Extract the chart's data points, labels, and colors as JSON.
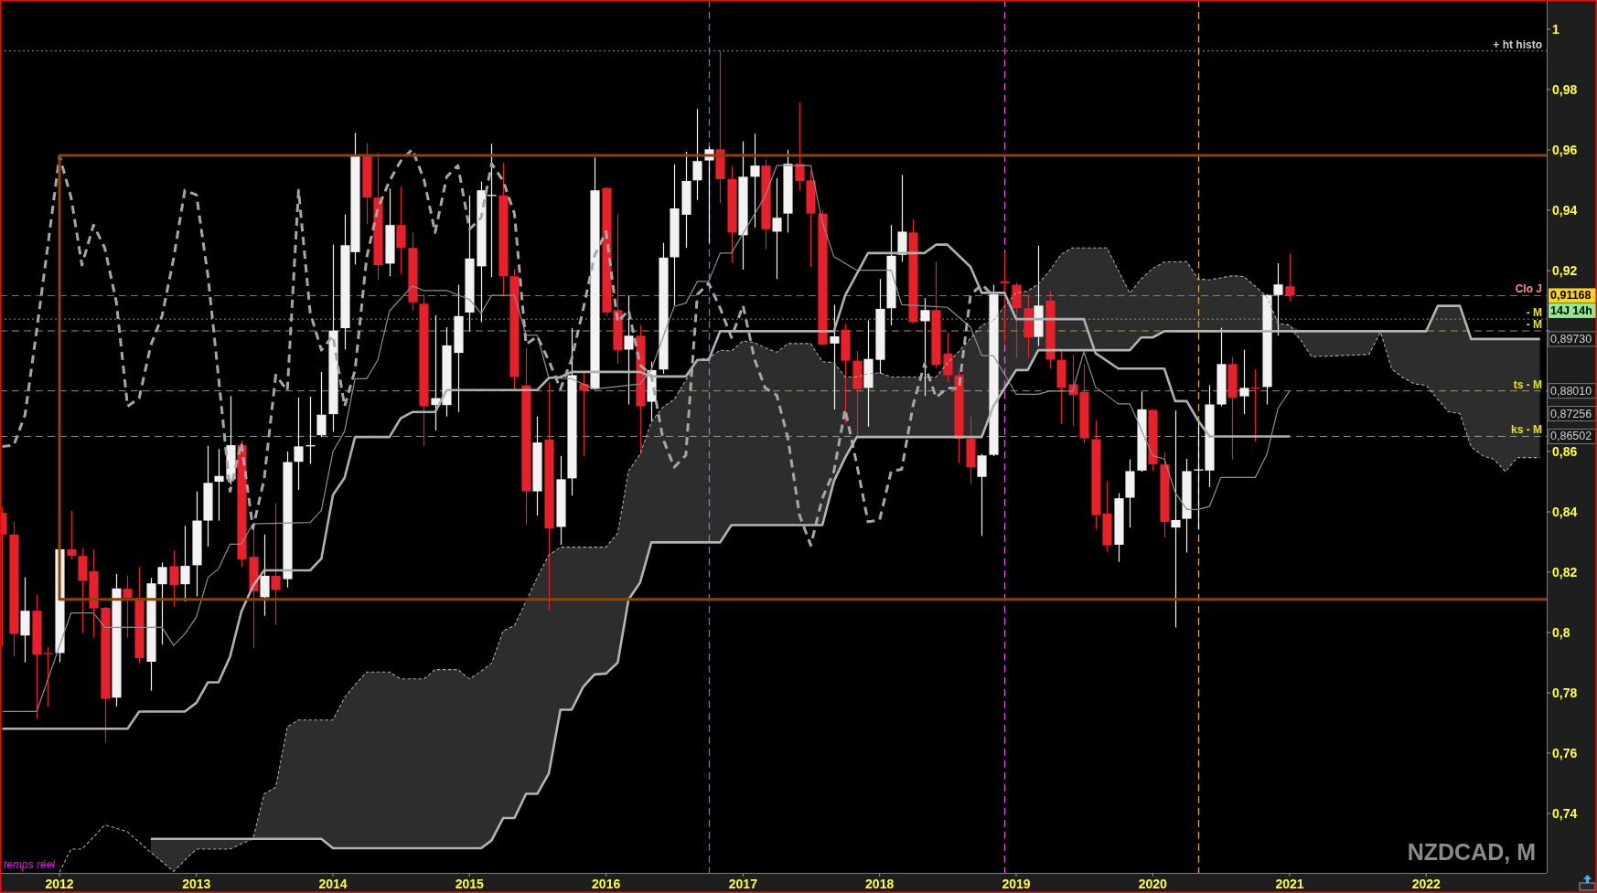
{
  "chart_data": {
    "type": "candlestick",
    "title": "NZDCAD, M",
    "x": [
      "2011-08",
      "2011-09",
      "2011-10",
      "2011-11",
      "2011-12",
      "2012-01",
      "2012-02",
      "2012-03",
      "2012-04",
      "2012-05",
      "2012-06",
      "2012-07",
      "2012-08",
      "2012-09",
      "2012-10",
      "2012-11",
      "2012-12",
      "2013-01",
      "2013-02",
      "2013-03",
      "2013-04",
      "2013-05",
      "2013-06",
      "2013-07",
      "2013-08",
      "2013-09",
      "2013-10",
      "2013-11",
      "2013-12",
      "2014-01",
      "2014-02",
      "2014-03",
      "2014-04",
      "2014-05",
      "2014-06",
      "2014-07",
      "2014-08",
      "2014-09",
      "2014-10",
      "2014-11",
      "2014-12",
      "2015-01",
      "2015-02",
      "2015-03",
      "2015-04",
      "2015-05",
      "2015-06",
      "2015-07",
      "2015-08",
      "2015-09",
      "2015-10",
      "2015-11",
      "2015-12",
      "2016-01",
      "2016-02",
      "2016-03",
      "2016-04",
      "2016-05",
      "2016-06",
      "2016-07",
      "2016-08",
      "2016-09",
      "2016-10",
      "2016-11",
      "2016-12",
      "2017-01",
      "2017-02",
      "2017-03",
      "2017-04",
      "2017-05",
      "2017-06",
      "2017-07",
      "2017-08",
      "2017-09",
      "2017-10",
      "2017-11",
      "2017-12",
      "2018-01",
      "2018-02",
      "2018-03",
      "2018-04",
      "2018-05",
      "2018-06",
      "2018-07",
      "2018-08",
      "2018-09",
      "2018-10",
      "2018-11",
      "2018-12",
      "2019-01",
      "2019-02",
      "2019-03",
      "2019-04",
      "2019-05",
      "2019-06",
      "2019-07",
      "2019-08",
      "2019-09",
      "2019-10",
      "2019-11",
      "2019-12",
      "2020-01",
      "2020-02",
      "2020-03",
      "2020-04",
      "2020-05",
      "2020-06",
      "2020-07",
      "2020-08",
      "2020-09",
      "2020-10",
      "2020-11",
      "2020-12",
      "2021-01"
    ],
    "ohlc": [
      [
        0.8397,
        0.8417,
        0.7955,
        0.8325
      ],
      [
        0.8325,
        0.8367,
        0.7921,
        0.7995
      ],
      [
        0.799,
        0.8183,
        0.7901,
        0.8072
      ],
      [
        0.8072,
        0.8126,
        0.7715,
        0.7926
      ],
      [
        0.7932,
        0.7952,
        0.7755,
        0.7928
      ],
      [
        0.7932,
        0.8277,
        0.7901,
        0.8276
      ],
      [
        0.8276,
        0.8403,
        0.8243,
        0.8254
      ],
      [
        0.8254,
        0.828,
        0.7998,
        0.8171
      ],
      [
        0.8203,
        0.8276,
        0.7983,
        0.808
      ],
      [
        0.8082,
        0.8085,
        0.7636,
        0.778
      ],
      [
        0.7784,
        0.8194,
        0.7755,
        0.8146
      ],
      [
        0.8145,
        0.8188,
        0.7983,
        0.8115
      ],
      [
        0.8115,
        0.8217,
        0.7898,
        0.7915
      ],
      [
        0.7903,
        0.8181,
        0.7807,
        0.8163
      ],
      [
        0.816,
        0.8232,
        0.796,
        0.8217
      ],
      [
        0.822,
        0.8272,
        0.8086,
        0.8157
      ],
      [
        0.816,
        0.8354,
        0.8103,
        0.8221
      ],
      [
        0.8223,
        0.8468,
        0.812,
        0.8371
      ],
      [
        0.8371,
        0.8619,
        0.8285,
        0.8496
      ],
      [
        0.85,
        0.8608,
        0.8371,
        0.8519
      ],
      [
        0.8508,
        0.8784,
        0.849,
        0.8621
      ],
      [
        0.8621,
        0.8636,
        0.8217,
        0.8242
      ],
      [
        0.8251,
        0.8348,
        0.7949,
        0.8137
      ],
      [
        0.8117,
        0.8325,
        0.8055,
        0.8188
      ],
      [
        0.8188,
        0.8428,
        0.8025,
        0.8141
      ],
      [
        0.8177,
        0.86,
        0.8149,
        0.8565
      ],
      [
        0.8566,
        0.8779,
        0.8473,
        0.8617
      ],
      [
        0.8617,
        0.8782,
        0.8559,
        0.8621
      ],
      [
        0.8654,
        0.8864,
        0.8648,
        0.8722
      ],
      [
        0.8724,
        0.9286,
        0.8665,
        0.9001
      ],
      [
        0.9009,
        0.9386,
        0.8938,
        0.9284
      ],
      [
        0.9261,
        0.9657,
        0.922,
        0.958
      ],
      [
        0.958,
        0.9622,
        0.9354,
        0.9442
      ],
      [
        0.9442,
        0.959,
        0.9169,
        0.9218
      ],
      [
        0.9223,
        0.9472,
        0.9181,
        0.9351
      ],
      [
        0.9351,
        0.9478,
        0.9189,
        0.9275
      ],
      [
        0.9275,
        0.9326,
        0.9066,
        0.9095
      ],
      [
        0.909,
        0.9121,
        0.8617,
        0.875
      ],
      [
        0.8754,
        0.9052,
        0.867,
        0.8777
      ],
      [
        0.8754,
        0.9012,
        0.8716,
        0.8952
      ],
      [
        0.8927,
        0.9153,
        0.8731,
        0.9049
      ],
      [
        0.9061,
        0.9449,
        0.8998,
        0.924
      ],
      [
        0.9214,
        0.9495,
        0.9029,
        0.9466
      ],
      [
        0.9447,
        0.962,
        0.9178,
        0.9451
      ],
      [
        0.9449,
        0.9557,
        0.9117,
        0.9181
      ],
      [
        0.9181,
        0.9204,
        0.8802,
        0.8847
      ],
      [
        0.8819,
        0.8944,
        0.8357,
        0.8468
      ],
      [
        0.8468,
        0.8716,
        0.8388,
        0.863
      ],
      [
        0.864,
        0.883,
        0.8072,
        0.8345
      ],
      [
        0.835,
        0.8585,
        0.8291,
        0.8508
      ],
      [
        0.8511,
        0.9009,
        0.8454,
        0.8853
      ],
      [
        0.8824,
        0.8864,
        0.8585,
        0.8802
      ],
      [
        0.8807,
        0.9575,
        0.8805,
        0.9466
      ],
      [
        0.9474,
        0.9477,
        0.9047,
        0.9061
      ],
      [
        0.9069,
        0.9385,
        0.889,
        0.8936
      ],
      [
        0.8938,
        0.9118,
        0.8756,
        0.8984
      ],
      [
        0.8984,
        0.902,
        0.8591,
        0.875
      ],
      [
        0.8765,
        0.8898,
        0.8699,
        0.887
      ],
      [
        0.8872,
        0.9292,
        0.8858,
        0.9243
      ],
      [
        0.9244,
        0.9552,
        0.9084,
        0.9406
      ],
      [
        0.9385,
        0.9594,
        0.9275,
        0.9497
      ],
      [
        0.9499,
        0.9736,
        0.9434,
        0.9563
      ],
      [
        0.9565,
        0.9611,
        0.9292,
        0.9602
      ],
      [
        0.9602,
        0.9928,
        0.9423,
        0.9503
      ],
      [
        0.9503,
        0.9545,
        0.9226,
        0.9326
      ],
      [
        0.9317,
        0.9628,
        0.9203,
        0.9511
      ],
      [
        0.9511,
        0.9654,
        0.9343,
        0.9548
      ],
      [
        0.9548,
        0.9568,
        0.9271,
        0.9337
      ],
      [
        0.9329,
        0.9506,
        0.9172,
        0.9375
      ],
      [
        0.9389,
        0.96,
        0.9326,
        0.9554
      ],
      [
        0.9554,
        0.9757,
        0.9465,
        0.9497
      ],
      [
        0.9499,
        0.9531,
        0.9212,
        0.9389
      ],
      [
        0.9389,
        0.94,
        0.8952,
        0.8955
      ],
      [
        0.8958,
        0.9087,
        0.8739,
        0.8982
      ],
      [
        0.9004,
        0.9024,
        0.8693,
        0.8901
      ],
      [
        0.8901,
        0.8933,
        0.8648,
        0.8807
      ],
      [
        0.8811,
        0.9035,
        0.8682,
        0.8907
      ],
      [
        0.8904,
        0.9172,
        0.8858,
        0.9073
      ],
      [
        0.9075,
        0.9351,
        0.9018,
        0.9249
      ],
      [
        0.9252,
        0.9517,
        0.9229,
        0.9329
      ],
      [
        0.9326,
        0.9371,
        0.9024,
        0.9029
      ],
      [
        0.9032,
        0.9109,
        0.8784,
        0.9069
      ],
      [
        0.9069,
        0.9229,
        0.8876,
        0.8887
      ],
      [
        0.8925,
        0.8995,
        0.883,
        0.8853
      ],
      [
        0.8853,
        0.8864,
        0.8562,
        0.8642
      ],
      [
        0.8642,
        0.8716,
        0.8493,
        0.8548
      ],
      [
        0.8516,
        0.8592,
        0.832,
        0.8587
      ],
      [
        0.8589,
        0.9153,
        0.8585,
        0.9121
      ],
      [
        0.9164,
        0.9258,
        0.896,
        0.9158
      ],
      [
        0.9153,
        0.9161,
        0.891,
        0.9075
      ],
      [
        0.9075,
        0.9118,
        0.891,
        0.8978
      ],
      [
        0.898,
        0.9282,
        0.895,
        0.9084
      ],
      [
        0.91,
        0.9132,
        0.8876,
        0.8905
      ],
      [
        0.8904,
        0.8937,
        0.8691,
        0.8811
      ],
      [
        0.8823,
        0.892,
        0.8685,
        0.8787
      ],
      [
        0.8797,
        0.889,
        0.8627,
        0.8644
      ],
      [
        0.8641,
        0.8703,
        0.8342,
        0.8389
      ],
      [
        0.8394,
        0.8502,
        0.8268,
        0.8289
      ],
      [
        0.8291,
        0.8462,
        0.8234,
        0.8445
      ],
      [
        0.8447,
        0.8574,
        0.8348,
        0.8535
      ],
      [
        0.8537,
        0.8799,
        0.8533,
        0.874
      ],
      [
        0.8738,
        0.8741,
        0.8537,
        0.8558
      ],
      [
        0.8557,
        0.8597,
        0.8315,
        0.8367
      ],
      [
        0.8348,
        0.8736,
        0.8017,
        0.8373
      ],
      [
        0.8377,
        0.8576,
        0.8265,
        0.8535
      ],
      [
        0.8537,
        0.8694,
        0.8342,
        0.8541
      ],
      [
        0.8537,
        0.882,
        0.8482,
        0.8756
      ],
      [
        0.8756,
        0.901,
        0.875,
        0.889
      ],
      [
        0.889,
        0.8914,
        0.8574,
        0.8779
      ],
      [
        0.8783,
        0.8937,
        0.8724,
        0.8811
      ],
      [
        0.8812,
        0.8873,
        0.8633,
        0.8809
      ],
      [
        0.8814,
        0.9121,
        0.8756,
        0.9119
      ],
      [
        0.9119,
        0.9224,
        0.8984,
        0.9154
      ],
      [
        0.9148,
        0.9256,
        0.9099,
        0.91168
      ]
    ],
    "colors": [
      "#e8202a",
      "#e8202a",
      "#f2f2f2",
      "#e8202a",
      "#e8202a",
      "#f2f2f2",
      "#e8202a",
      "#e8202a",
      "#e8202a",
      "#e8202a",
      "#f2f2f2",
      "#e8202a",
      "#e8202a",
      "#f2f2f2",
      "#f2f2f2",
      "#e8202a",
      "#f2f2f2",
      "#f2f2f2",
      "#f2f2f2",
      "#f2f2f2",
      "#f2f2f2",
      "#e8202a",
      "#e8202a",
      "#f2f2f2",
      "#e8202a",
      "#f2f2f2",
      "#f2f2f2",
      "#f2f2f2",
      "#f2f2f2",
      "#f2f2f2",
      "#f2f2f2",
      "#f2f2f2",
      "#e8202a",
      "#e8202a",
      "#f2f2f2",
      "#e8202a",
      "#e8202a",
      "#e8202a",
      "#f2f2f2",
      "#f2f2f2",
      "#f2f2f2",
      "#f2f2f2",
      "#f2f2f2",
      "#f2f2f2",
      "#e8202a",
      "#e8202a",
      "#e8202a",
      "#f2f2f2",
      "#e8202a",
      "#f2f2f2",
      "#f2f2f2",
      "#e8202a",
      "#f2f2f2",
      "#e8202a",
      "#e8202a",
      "#f2f2f2",
      "#e8202a",
      "#f2f2f2",
      "#f2f2f2",
      "#f2f2f2",
      "#f2f2f2",
      "#f2f2f2",
      "#f2f2f2",
      "#e8202a",
      "#e8202a",
      "#f2f2f2",
      "#f2f2f2",
      "#e8202a",
      "#f2f2f2",
      "#f2f2f2",
      "#e8202a",
      "#e8202a",
      "#e8202a",
      "#f2f2f2",
      "#e8202a",
      "#e8202a",
      "#f2f2f2",
      "#f2f2f2",
      "#f2f2f2",
      "#f2f2f2",
      "#e8202a",
      "#f2f2f2",
      "#e8202a",
      "#e8202a",
      "#e8202a",
      "#e8202a",
      "#f2f2f2",
      "#f2f2f2",
      "#e8202a",
      "#e8202a",
      "#e8202a",
      "#f2f2f2",
      "#e8202a",
      "#e8202a",
      "#e8202a",
      "#e8202a",
      "#e8202a",
      "#e8202a",
      "#f2f2f2",
      "#f2f2f2",
      "#f2f2f2",
      "#e8202a",
      "#e8202a",
      "#f2f2f2",
      "#f2f2f2",
      "#f2f2f2",
      "#f2f2f2",
      "#f2f2f2",
      "#e8202a",
      "#f2f2f2",
      "#e8202a",
      "#f2f2f2",
      "#f2f2f2",
      "#e8202a"
    ],
    "series": [
      {
        "type": "line",
        "color": "#8e8e8e",
        "x": [
          "2011-08",
          "2011-11",
          "2012-02",
          "2012-04",
          "2012-05",
          "2012-10",
          "2012-11",
          "2012-12",
          "2013-01",
          "2013-02",
          "2013-03",
          "2013-04",
          "2013-05",
          "2013-06",
          "2013-11",
          "2013-12",
          "2014-01",
          "2014-02",
          "2014-03",
          "2014-04",
          "2014-05",
          "2014-06",
          "2014-08",
          "2014-09",
          "2014-11",
          "2015-01",
          "2015-02",
          "2015-03",
          "2015-05",
          "2015-06",
          "2015-07",
          "2015-08",
          "2015-10",
          "2015-12",
          "2016-04",
          "2016-05",
          "2016-07",
          "2016-08",
          "2016-09",
          "2016-10",
          "2016-11",
          "2016-12",
          "2017-03",
          "2017-04",
          "2017-07",
          "2017-08",
          "2017-09",
          "2017-11",
          "2018-02",
          "2018-03",
          "2018-07",
          "2018-09",
          "2018-10",
          "2018-11",
          "2019-01",
          "2019-03",
          "2019-04",
          "2019-06",
          "2019-07",
          "2019-08",
          "2019-10",
          "2019-11",
          "2020-01",
          "2020-02",
          "2020-03",
          "2020-04",
          "2020-05",
          "2020-06",
          "2020-07",
          "2020-10",
          "2020-11",
          "2020-12",
          "2021-01"
        ],
        "values": [
          0.7738,
          0.7738,
          0.8065,
          0.8065,
          0.8017,
          0.8017,
          0.7957,
          0.7995,
          0.8052,
          0.8183,
          0.8211,
          0.8293,
          0.8293,
          0.836,
          0.8365,
          0.8405,
          0.86,
          0.8667,
          0.8841,
          0.8841,
          0.8904,
          0.9066,
          0.9149,
          0.9134,
          0.9134,
          0.9104,
          0.9058,
          0.9118,
          0.9118,
          0.8986,
          0.8986,
          0.8844,
          0.8841,
          0.8807,
          0.8824,
          0.8872,
          0.9081,
          0.9092,
          0.9164,
          0.9164,
          0.9258,
          0.9258,
          0.9446,
          0.9548,
          0.9548,
          0.936,
          0.9246,
          0.9201,
          0.9201,
          0.9087,
          0.9078,
          0.9012,
          0.8918,
          0.8918,
          0.879,
          0.879,
          0.8801,
          0.88,
          0.8931,
          0.8814,
          0.8758,
          0.8758,
          0.8586,
          0.8575,
          0.8465,
          0.8408,
          0.8408,
          0.8418,
          0.8514,
          0.8514,
          0.859,
          0.8744,
          0.8801
        ]
      },
      {
        "type": "line",
        "color": "#b0b0b0",
        "x": [
          "2011-08",
          "2012-07",
          "2012-08",
          "2012-12",
          "2013-01",
          "2013-02",
          "2013-03",
          "2013-04",
          "2013-05",
          "2013-06",
          "2013-07",
          "2013-11",
          "2013-12",
          "2014-01",
          "2014-02",
          "2014-03",
          "2014-06",
          "2014-07",
          "2014-08",
          "2014-10",
          "2014-11",
          "2015-07",
          "2015-08",
          "2015-09",
          "2015-10",
          "2016-04",
          "2016-05",
          "2016-08",
          "2016-09",
          "2016-10",
          "2016-11",
          "2017-09",
          "2017-10",
          "2017-12",
          "2018-05",
          "2018-06",
          "2018-07",
          "2018-09",
          "2018-10",
          "2018-12",
          "2019-01",
          "2019-07",
          "2019-08",
          "2019-10",
          "2020-02",
          "2020-03",
          "2020-04",
          "2020-05",
          "2020-06",
          "2021-01"
        ],
        "values": [
          0.7681,
          0.7681,
          0.7738,
          0.7738,
          0.7767,
          0.7835,
          0.7835,
          0.792,
          0.8069,
          0.8154,
          0.8206,
          0.8206,
          0.8245,
          0.8456,
          0.8513,
          0.8648,
          0.8648,
          0.871,
          0.8731,
          0.8731,
          0.8804,
          0.8804,
          0.8844,
          0.8847,
          0.8864,
          0.8864,
          0.8849,
          0.8849,
          0.8904,
          0.8904,
          0.8999,
          0.8999,
          0.9118,
          0.9258,
          0.9258,
          0.9286,
          0.9286,
          0.9212,
          0.9126,
          0.9126,
          0.9039,
          0.9039,
          0.8926,
          0.8875,
          0.8875,
          0.8767,
          0.8767,
          0.8703,
          0.865,
          0.865
        ]
      },
      {
        "type": "line",
        "color": "#a6a6a6",
        "line_style": "dashed",
        "x": [
          "2011-08",
          "2011-09",
          "2011-10",
          "2011-11",
          "2011-12",
          "2012-01",
          "2012-02",
          "2012-03",
          "2012-04",
          "2012-05",
          "2012-06",
          "2012-07",
          "2012-08",
          "2012-09",
          "2012-10",
          "2012-11",
          "2012-12",
          "2013-01",
          "2013-02",
          "2013-03",
          "2013-04",
          "2013-05",
          "2013-06",
          "2013-07",
          "2013-08",
          "2013-09",
          "2013-10",
          "2013-11",
          "2013-12",
          "2014-01",
          "2014-02",
          "2014-03",
          "2014-04",
          "2014-05",
          "2014-06",
          "2014-07",
          "2014-08",
          "2014-09",
          "2014-10",
          "2014-11",
          "2014-12",
          "2015-01",
          "2015-02",
          "2015-03",
          "2015-04",
          "2015-05",
          "2015-06",
          "2015-07",
          "2015-08",
          "2015-09",
          "2015-10",
          "2015-11",
          "2015-12",
          "2016-01",
          "2016-02",
          "2016-03",
          "2016-04",
          "2016-05",
          "2016-06",
          "2016-07",
          "2016-08",
          "2016-09",
          "2016-10",
          "2016-11",
          "2016-12",
          "2017-01",
          "2017-02",
          "2017-03",
          "2017-04",
          "2017-05",
          "2017-06",
          "2017-07",
          "2017-08",
          "2017-09",
          "2017-10",
          "2017-11",
          "2017-12",
          "2018-01",
          "2018-02",
          "2018-03",
          "2018-04",
          "2018-05",
          "2018-06",
          "2018-07",
          "2018-08",
          "2018-09",
          "2018-10",
          "2018-11"
        ],
        "values": [
          0.8617,
          0.8621,
          0.8722,
          0.9001,
          0.9284,
          0.958,
          0.9442,
          0.9218,
          0.9351,
          0.9275,
          0.9095,
          0.875,
          0.8777,
          0.8952,
          0.9049,
          0.924,
          0.9466,
          0.9451,
          0.9181,
          0.8847,
          0.8468,
          0.863,
          0.8345,
          0.8508,
          0.8853,
          0.8802,
          0.9466,
          0.9061,
          0.8936,
          0.8984,
          0.875,
          0.887,
          0.9243,
          0.9406,
          0.9497,
          0.9563,
          0.9602,
          0.9503,
          0.9326,
          0.9511,
          0.9548,
          0.9337,
          0.9375,
          0.9554,
          0.9497,
          0.9389,
          0.8955,
          0.8982,
          0.8901,
          0.8807,
          0.8907,
          0.9073,
          0.9249,
          0.9329,
          0.9029,
          0.9069,
          0.8887,
          0.8853,
          0.8642,
          0.8548,
          0.8587,
          0.9121,
          0.9158,
          0.9075,
          0.8978,
          0.9084,
          0.8905,
          0.8811,
          0.8787,
          0.8644,
          0.8389,
          0.8289,
          0.8445,
          0.8535,
          0.874,
          0.8558,
          0.8367,
          0.8373,
          0.8535,
          0.8541,
          0.8756,
          0.889,
          0.8779,
          0.8811,
          0.8809,
          0.9119,
          0.9154,
          0.91168
        ]
      },
      {
        "type": "line",
        "color": "#a8a8a8",
        "line_style": "dashed",
        "x": [
          "2012-01",
          "2012-02",
          "2012-03",
          "2012-04",
          "2012-05",
          "2012-06",
          "2012-07",
          "2012-08",
          "2012-09",
          "2012-10",
          "2012-11",
          "2012-12",
          "2013-01",
          "2013-02",
          "2013-03",
          "2013-04",
          "2013-05",
          "2013-06",
          "2013-07",
          "2013-08",
          "2013-09",
          "2013-10",
          "2013-11",
          "2013-12",
          "2014-01",
          "2014-02",
          "2014-03",
          "2014-04",
          "2014-05",
          "2014-06",
          "2014-07",
          "2014-08",
          "2014-09",
          "2014-10",
          "2014-11",
          "2014-12",
          "2015-01",
          "2015-02",
          "2015-03",
          "2015-04",
          "2015-05",
          "2015-06",
          "2015-07",
          "2015-08",
          "2015-09",
          "2015-10",
          "2015-11",
          "2015-12",
          "2016-01",
          "2016-02",
          "2016-03",
          "2016-04",
          "2016-05",
          "2016-06",
          "2016-07",
          "2016-08",
          "2016-09",
          "2016-10",
          "2016-11",
          "2016-12",
          "2017-01",
          "2017-02",
          "2017-03",
          "2017-04",
          "2017-05",
          "2017-06",
          "2017-07",
          "2017-08",
          "2017-09",
          "2017-10",
          "2017-11",
          "2017-12",
          "2018-01",
          "2018-02",
          "2018-03",
          "2018-04",
          "2018-05",
          "2018-06",
          "2018-07",
          "2018-08",
          "2018-09",
          "2018-10",
          "2018-11",
          "2018-12",
          "2019-01",
          "2019-02",
          "2019-03",
          "2019-04",
          "2019-05",
          "2019-06",
          "2019-07",
          "2019-08",
          "2019-09",
          "2019-10",
          "2019-11",
          "2019-12",
          "2020-01",
          "2020-02",
          "2020-03",
          "2020-04",
          "2020-05",
          "2020-06",
          "2020-07",
          "2020-08",
          "2020-09",
          "2020-10",
          "2020-11",
          "2020-12",
          "2021-01",
          "2021-02",
          "2021-03",
          "2021-04",
          "2021-05",
          "2021-06",
          "2021-07",
          "2021-08",
          "2021-09",
          "2021-10",
          "2021-11",
          "2021-12",
          "2022-01",
          "2022-02",
          "2022-03",
          "2022-04",
          "2022-05",
          "2022-06",
          "2022-07",
          "2022-08",
          "2022-09",
          "2022-10",
          "2022-11"
        ],
        "values": [
          0.7205,
          0.7282,
          0.7282,
          0.7322,
          0.7362,
          0.7351,
          0.7339,
          0.7305,
          0.7271,
          0.724,
          0.7208,
          0.7245,
          0.7282,
          0.7282,
          0.7282,
          0.7282,
          0.7299,
          0.7316,
          0.7465,
          0.7487,
          0.7687,
          0.771,
          0.771,
          0.771,
          0.771,
          0.7784,
          0.7827,
          0.7869,
          0.7869,
          0.7869,
          0.7846,
          0.7846,
          0.7846,
          0.7877,
          0.7877,
          0.7877,
          0.7846,
          0.7872,
          0.7898,
          0.8006,
          0.8023,
          0.8103,
          0.8183,
          0.8257,
          0.8283,
          0.8283,
          0.8283,
          0.8283,
          0.8283,
          0.8329,
          0.8536,
          0.8591,
          0.8699,
          0.8747,
          0.8773,
          0.8836,
          0.8904,
          0.891,
          0.8936,
          0.8933,
          0.8967,
          0.8961,
          0.8944,
          0.8929,
          0.8958,
          0.8958,
          0.8958,
          0.8898,
          0.8895,
          0.8847,
          0.8847,
          0.8858,
          0.8861,
          0.8847,
          0.8847,
          0.8847,
          0.8847,
          0.8847,
          0.8893,
          0.8932,
          0.8975,
          0.9018,
          0.9035,
          0.9081,
          0.9126,
          0.9132,
          0.9155,
          0.92,
          0.9254,
          0.9275,
          0.9275,
          0.9275,
          0.9275,
          0.92,
          0.9125,
          0.9172,
          0.9207,
          0.9228,
          0.9229,
          0.923,
          0.9172,
          0.9169,
          0.9176,
          0.9183,
          0.918,
          0.9148,
          0.9113,
          0.9025,
          0.9019,
          0.8967,
          0.8914,
          0.8916,
          0.8917,
          0.8919,
          0.892,
          0.8922,
          0.8996,
          0.8873,
          0.8844,
          0.8824,
          0.882,
          0.8773,
          0.8732,
          0.8726,
          0.8615,
          0.8586,
          0.8574,
          0.8533,
          0.858,
          0.858,
          0.858
        ],
        "lower": [
          null,
          null,
          null,
          null,
          null,
          null,
          null,
          null,
          0.7271,
          0.724,
          0.7208,
          0.7245,
          0.7282,
          0.7282,
          0.7282,
          0.7282,
          0.7299,
          0.7316,
          0.7316,
          0.7316,
          0.7316,
          0.7316,
          0.7316,
          0.7316,
          0.7285,
          0.7285,
          0.7285,
          0.7285,
          0.7285,
          0.7285,
          0.7285,
          0.7285,
          0.7285,
          0.7285,
          0.7285,
          0.7285,
          0.7285,
          0.7285,
          0.7311,
          0.7385,
          0.7385,
          0.7465,
          0.7465,
          0.7533,
          0.7744,
          0.7744,
          0.782,
          0.7861,
          0.7864,
          0.79,
          0.8109,
          0.8166,
          0.8299,
          0.8299,
          0.8299,
          0.8299,
          0.8299,
          0.8299,
          0.8299,
          0.8356,
          0.8356,
          0.8356,
          0.8356,
          0.8356,
          0.8356,
          0.8356,
          0.8356,
          0.8356,
          0.8502,
          0.858,
          0.8648,
          0.8648,
          0.8648,
          0.8648,
          0.8648,
          0.8648,
          0.8648,
          0.8648,
          0.8648,
          0.8648,
          0.8648,
          0.8648,
          0.875,
          0.881,
          0.887,
          0.887,
          0.8936,
          0.8936,
          0.8936,
          0.8936,
          0.8936,
          0.8936,
          0.8936,
          0.8936,
          0.8936,
          0.8978,
          0.8978,
          0.8999,
          0.8999,
          0.8999,
          0.8999,
          0.8999,
          0.8999,
          0.8999,
          0.8999,
          0.8999,
          0.8999,
          0.8999,
          0.8999,
          0.8967,
          0.8914,
          0.8916,
          0.8917,
          0.8919,
          0.892,
          0.8922,
          0.8996,
          0.8873,
          0.8844,
          0.8824,
          0.882,
          0.8773,
          0.8732,
          0.8726,
          0.8615,
          0.8586,
          0.8574,
          0.8533,
          0.858,
          0.858,
          0.858
        ],
        "upper": [
          null,
          null,
          null,
          null,
          null,
          null,
          null,
          null,
          0.7316,
          0.7316,
          0.7316,
          0.7316,
          0.7316,
          0.7316,
          0.7316,
          0.7316,
          0.7316,
          0.7316,
          0.7465,
          0.7487,
          0.7687,
          0.771,
          0.771,
          0.771,
          0.771,
          0.7784,
          0.7827,
          0.7869,
          0.7869,
          0.7869,
          0.7846,
          0.7846,
          0.7846,
          0.7877,
          0.7877,
          0.7877,
          0.7846,
          0.7872,
          0.7898,
          0.8006,
          0.8023,
          0.8103,
          0.8183,
          0.8257,
          0.8283,
          0.8283,
          0.8283,
          0.8283,
          0.8283,
          0.8329,
          0.8536,
          0.8591,
          0.8699,
          0.8747,
          0.8773,
          0.8836,
          0.8904,
          0.891,
          0.8936,
          0.8933,
          0.8967,
          0.8961,
          0.8944,
          0.8929,
          0.8958,
          0.8958,
          0.8958,
          0.8898,
          0.8895,
          0.8847,
          0.8847,
          0.8858,
          0.8861,
          0.8847,
          0.8847,
          0.8847,
          0.8847,
          0.8847,
          0.8893,
          0.8932,
          0.8975,
          0.9018,
          0.9035,
          0.9081,
          0.9126,
          0.9132,
          0.9155,
          0.92,
          0.9254,
          0.9275,
          0.9275,
          0.9275,
          0.9275,
          0.92,
          0.9125,
          0.9172,
          0.9207,
          0.9228,
          0.9229,
          0.923,
          0.9172,
          0.9169,
          0.9176,
          0.9183,
          0.918,
          0.9148,
          0.9113,
          0.9025,
          0.9019,
          0.8999,
          0.8999,
          0.8999,
          0.8999,
          0.8999,
          0.8999,
          0.8999,
          0.8999,
          0.8999,
          0.8999,
          0.8999,
          0.8999,
          0.9083,
          0.9083,
          0.9083,
          0.8973,
          0.8973,
          0.8973,
          0.8973,
          0.8973,
          0.8973,
          0.8973
        ]
      },
      {
        "type": "line",
        "color": "#b4b4b4",
        "x": [
          "2012-09",
          "2013-12",
          "2014-01",
          "2015-02",
          "2015-03",
          "2015-04",
          "2015-05",
          "2015-06",
          "2015-07",
          "2015-08",
          "2015-09",
          "2015-10",
          "2015-11",
          "2015-12",
          "2016-01",
          "2016-02",
          "2016-03",
          "2016-04",
          "2016-05",
          "2016-11",
          "2016-12",
          "2017-08",
          "2017-09",
          "2017-10",
          "2017-11",
          "2018-10",
          "2018-11",
          "2018-12",
          "2019-01",
          "2019-02",
          "2019-03",
          "2019-11",
          "2019-12",
          "2020-01",
          "2020-02",
          "2022-01",
          "2022-02",
          "2022-04",
          "2022-05",
          "2022-11"
        ],
        "values": [
          0.7316,
          0.7316,
          0.7285,
          0.7285,
          0.7311,
          0.7385,
          0.7385,
          0.7465,
          0.7465,
          0.7533,
          0.7744,
          0.7744,
          0.782,
          0.7861,
          0.7864,
          0.79,
          0.8109,
          0.8166,
          0.8299,
          0.8299,
          0.8356,
          0.8356,
          0.8502,
          0.858,
          0.8648,
          0.8648,
          0.875,
          0.881,
          0.887,
          0.887,
          0.8936,
          0.8936,
          0.8978,
          0.8978,
          0.8999,
          0.8999,
          0.9083,
          0.9083,
          0.8973,
          0.8973
        ]
      },
      {
        "type": "line",
        "color": "#8b4306",
        "x": [
          "2022-11-19",
          "2012-01",
          "2012-01",
          "2022-11-19"
        ],
        "values": [
          0.9582,
          0.9582,
          0.811,
          0.811
        ]
      }
    ],
    "xlim": [
      "2011-07-26",
      "2022-11-19"
    ],
    "xticks": [
      "2012",
      "2013",
      "2014",
      "2015",
      "2016",
      "2017",
      "2018",
      "2019",
      "2020",
      "2021",
      "2022"
    ],
    "ylim": [
      0.7203,
      1.0097
    ],
    "yticks": [
      {
        "value": 0.74,
        "label": "0,74"
      },
      {
        "value": 0.76,
        "label": "0,76"
      },
      {
        "value": 0.78,
        "label": "0,78"
      },
      {
        "value": 0.8,
        "label": "0,8"
      },
      {
        "value": 0.82,
        "label": "0,82"
      },
      {
        "value": 0.84,
        "label": "0,84"
      },
      {
        "value": 0.86,
        "label": "0,86"
      },
      {
        "value": 0.88,
        "label": null
      },
      {
        "value": 0.9,
        "label": null
      },
      {
        "value": 0.92,
        "label": "0,92"
      },
      {
        "value": 0.94,
        "label": "0,94"
      },
      {
        "value": 0.96,
        "label": "0,96"
      },
      {
        "value": 0.98,
        "label": "0,98"
      },
      1
    ],
    "y2lim": [
      0.7203,
      1.0097
    ],
    "y2ticks": [
      {
        "value": 0.91168,
        "label": "0,91168"
      },
      {
        "value": 0.8973,
        "label": "0,89730"
      },
      {
        "value": 0.8801,
        "label": "0,88010"
      },
      {
        "value": 0.87256,
        "label": "0,87256"
      },
      {
        "value": 0.86502,
        "label": "0,86502"
      }
    ],
    "ref_lines": [
      {
        "axis": "y",
        "value": 0.9928,
        "label": "+ ht histo",
        "color": "#d0d0d0",
        "line_style": "dotted"
      },
      {
        "axis": "y",
        "value": 0.91168,
        "label": "Clo J",
        "color": "#ff8c8c",
        "line_style": "dashed"
      },
      {
        "axis": "y",
        "value": 0.9039,
        "label": "- M",
        "color": "#e6e600",
        "line_style": "dotted"
      },
      {
        "axis": "y",
        "value": 0.9,
        "label": "- M",
        "color": "#e6e600",
        "line_style": "dashed"
      },
      {
        "axis": "y",
        "value": 0.8801,
        "label": "ts - M",
        "color": "#e6e600",
        "line_style": "dashed"
      },
      {
        "axis": "y",
        "value": 0.86502,
        "label": "ks - M",
        "color": "#e6e600",
        "line_style": "dashed"
      },
      {
        "axis": "x",
        "value": "2016-10",
        "color": "#4d7fe6",
        "line_style": "dashed"
      },
      {
        "axis": "x",
        "value": "2018-12",
        "color": "#e64de6",
        "line_style": "dashed"
      },
      {
        "axis": "x",
        "value": "2020-05",
        "color": "#e6a817",
        "line_style": "dashed"
      }
    ],
    "annotations": [
      "temps réel",
      "14J 14h"
    ]
  }
}
